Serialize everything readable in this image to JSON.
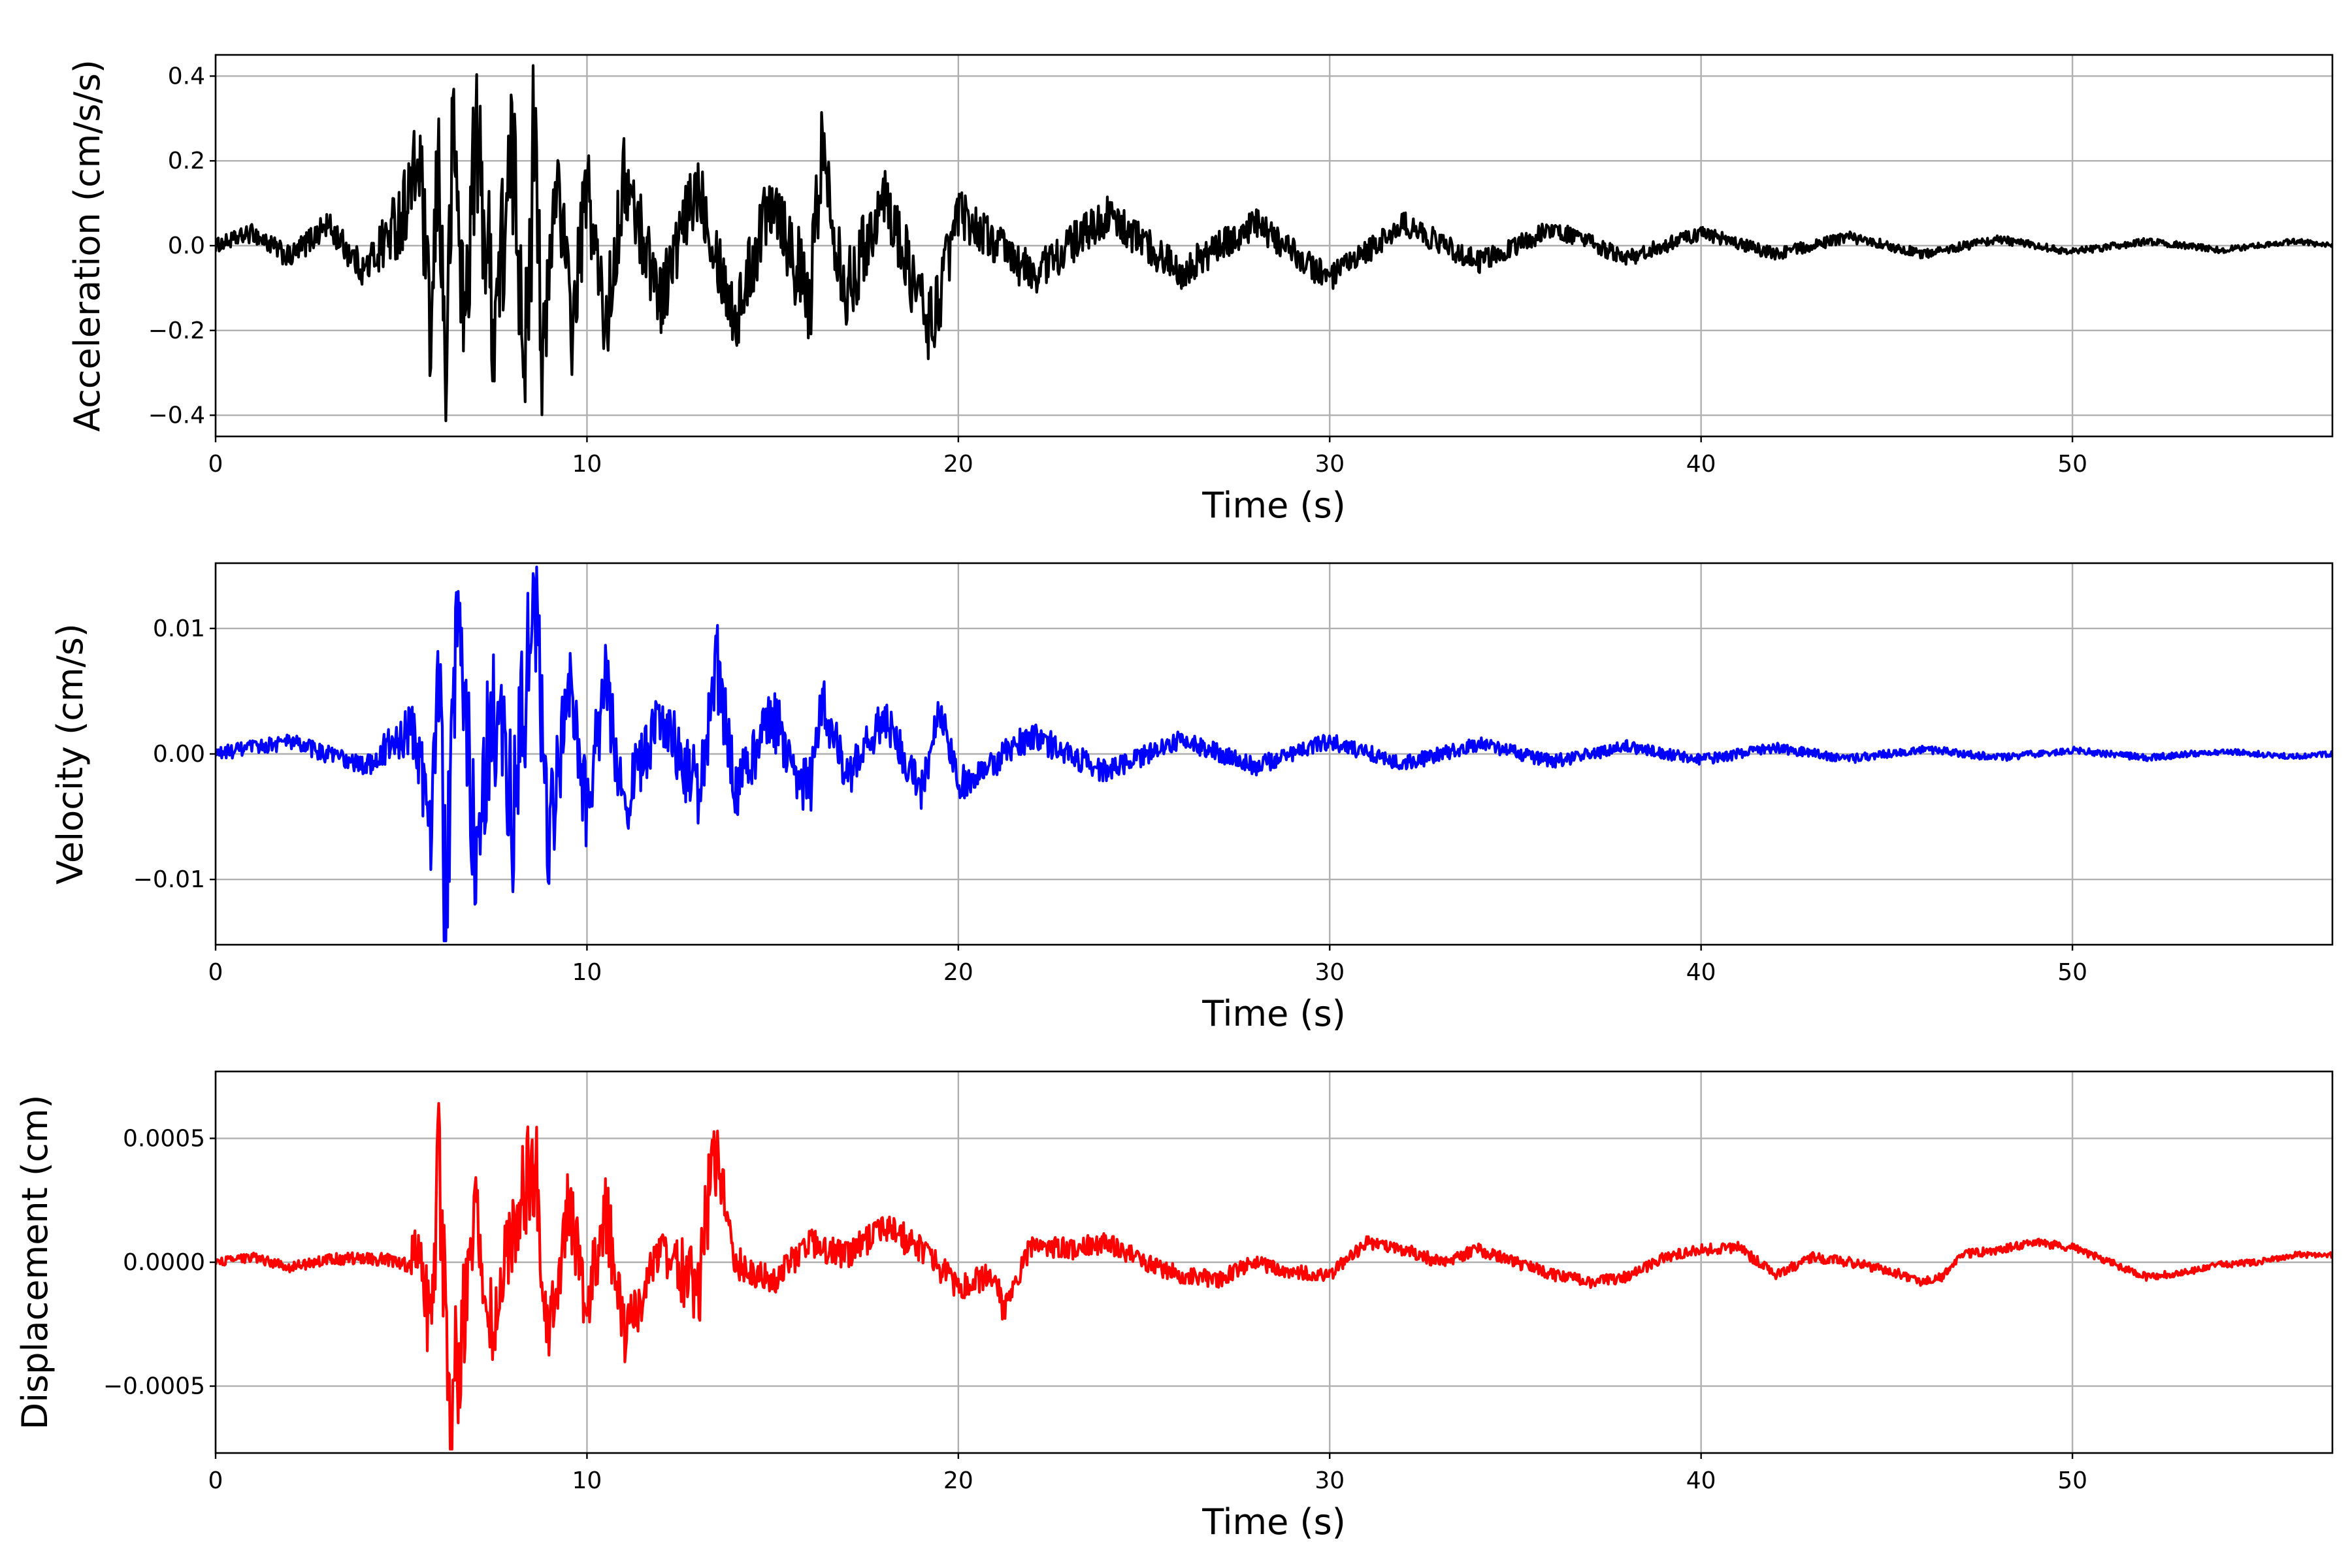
{
  "chart_data": [
    {
      "type": "line",
      "xlabel": "Time (s)",
      "ylabel": "Acceleration (cm/s/s)",
      "xlim": [
        0,
        57
      ],
      "ylim": [
        -0.45,
        0.45
      ],
      "xticks": [
        0,
        10,
        20,
        30,
        40,
        50
      ],
      "xtick_labels": [
        "0",
        "10",
        "20",
        "30",
        "40",
        "50"
      ],
      "yticks": [
        -0.4,
        -0.2,
        0.0,
        0.2,
        0.4
      ],
      "ytick_labels": [
        "−0.4",
        "−0.2",
        "0.0",
        "0.2",
        "0.4"
      ],
      "grid": true,
      "color": "#000000",
      "envelope": [
        [
          0,
          0.03
        ],
        [
          2,
          0.05
        ],
        [
          4,
          0.07
        ],
        [
          5.5,
          0.22
        ],
        [
          6.2,
          0.3
        ],
        [
          8.6,
          0.4
        ],
        [
          9,
          0.2
        ],
        [
          10,
          0.2
        ],
        [
          12,
          0.16
        ],
        [
          14,
          0.15
        ],
        [
          16.3,
          0.22
        ],
        [
          18,
          0.12
        ],
        [
          19.3,
          0.19
        ],
        [
          20,
          0.1
        ],
        [
          25,
          0.08
        ],
        [
          30,
          0.06
        ],
        [
          35,
          0.045
        ],
        [
          40,
          0.03
        ],
        [
          45,
          0.022
        ],
        [
          50,
          0.016
        ],
        [
          57,
          0.012
        ]
      ],
      "series": [
        {
          "x": [
            0,
            1,
            2,
            3,
            4,
            5,
            5.5,
            5.8,
            6.0,
            6.2,
            6.4,
            6.7,
            7.0,
            7.5,
            8.0,
            8.4,
            8.6,
            8.8,
            9.2,
            9.6,
            10.0,
            10.5,
            11,
            12,
            13,
            14,
            15,
            16,
            16.3,
            17,
            18,
            19,
            19.3,
            20,
            22,
            24,
            26,
            28,
            30,
            32,
            34,
            36,
            38,
            40,
            42,
            44,
            46,
            48,
            50,
            52,
            54,
            56,
            57
          ],
          "y": [
            0.0,
            0.03,
            -0.03,
            0.05,
            -0.06,
            0.07,
            0.2,
            -0.25,
            0.23,
            -0.33,
            0.3,
            -0.2,
            0.27,
            -0.17,
            0.2,
            -0.28,
            0.41,
            -0.32,
            0.19,
            -0.21,
            0.15,
            -0.2,
            0.16,
            -0.12,
            0.15,
            -0.18,
            0.14,
            -0.15,
            0.23,
            -0.11,
            0.12,
            -0.14,
            -0.19,
            0.08,
            -0.07,
            0.07,
            -0.06,
            0.05,
            -0.08,
            0.05,
            -0.04,
            0.04,
            -0.03,
            0.03,
            -0.02,
            0.02,
            -0.02,
            0.015,
            -0.015,
            0.01,
            -0.01,
            0.01,
            0.0
          ]
        }
      ]
    },
    {
      "type": "line",
      "xlabel": "Time (s)",
      "ylabel": "Velocity (cm/s)",
      "xlim": [
        0,
        57
      ],
      "ylim": [
        -0.0152,
        0.0152
      ],
      "xticks": [
        0,
        10,
        20,
        30,
        40,
        50
      ],
      "xtick_labels": [
        "0",
        "10",
        "20",
        "30",
        "40",
        "50"
      ],
      "yticks": [
        -0.01,
        0.0,
        0.01
      ],
      "ytick_labels": [
        "−0.01",
        "0.00",
        "0.01"
      ],
      "grid": true,
      "color": "#0000ff",
      "envelope": [
        [
          0,
          0.001
        ],
        [
          4,
          0.0015
        ],
        [
          5.3,
          0.004
        ],
        [
          5.8,
          0.008
        ],
        [
          6.2,
          0.014
        ],
        [
          6.5,
          0.01
        ],
        [
          8.6,
          0.012
        ],
        [
          9.5,
          0.006
        ],
        [
          10.3,
          0.006
        ],
        [
          12,
          0.004
        ],
        [
          13.5,
          0.007
        ],
        [
          14,
          0.004
        ],
        [
          16,
          0.005
        ],
        [
          17,
          0.003
        ],
        [
          20,
          0.0025
        ],
        [
          25,
          0.0015
        ],
        [
          30,
          0.0012
        ],
        [
          35,
          0.001
        ],
        [
          40,
          0.0008
        ],
        [
          45,
          0.0006
        ],
        [
          50,
          0.0005
        ],
        [
          57,
          0.0004
        ]
      ],
      "series": [
        {
          "x": [
            0,
            2,
            4,
            5.3,
            5.8,
            6.0,
            6.2,
            6.5,
            7.0,
            7.5,
            8.0,
            8.6,
            9.0,
            9.5,
            10.0,
            10.5,
            11,
            12,
            13,
            13.5,
            14,
            15,
            16,
            16.3,
            17,
            18,
            19,
            19.5,
            20,
            22,
            24,
            26,
            28,
            30,
            32,
            34,
            36,
            38,
            40,
            42,
            44,
            46,
            48,
            50,
            52,
            54,
            56,
            57
          ],
          "y": [
            0.0,
            0.001,
            -0.001,
            0.002,
            -0.005,
            0.008,
            -0.0139,
            0.0102,
            -0.007,
            0.004,
            -0.005,
            0.0122,
            -0.0075,
            0.0065,
            -0.005,
            0.006,
            -0.004,
            0.003,
            -0.003,
            0.0068,
            -0.003,
            0.003,
            -0.003,
            0.0047,
            -0.002,
            0.003,
            -0.003,
            0.0035,
            -0.0025,
            0.0015,
            -0.0015,
            0.0012,
            -0.001,
            0.001,
            -0.0008,
            0.0008,
            -0.0006,
            0.0006,
            -0.0005,
            0.0005,
            -0.0004,
            0.0004,
            -0.0003,
            0.0003,
            -0.0003,
            0.0002,
            -0.0002,
            0.0
          ]
        }
      ]
    },
    {
      "type": "line",
      "xlabel": "Time (s)",
      "ylabel": "Displacement (cm)",
      "xlim": [
        0,
        57
      ],
      "ylim": [
        -0.00077,
        0.00077
      ],
      "xticks": [
        0,
        10,
        20,
        30,
        40,
        50
      ],
      "xtick_labels": [
        "0",
        "10",
        "20",
        "30",
        "40",
        "50"
      ],
      "yticks": [
        -0.0005,
        0.0,
        0.0005
      ],
      "ytick_labels": [
        "−0.0005",
        "0.0000",
        "0.0005"
      ],
      "grid": true,
      "color": "#ff0000",
      "envelope": [
        [
          0,
          3e-05
        ],
        [
          5,
          5e-05
        ],
        [
          5.6,
          0.00025
        ],
        [
          6.0,
          0.00047
        ],
        [
          6.3,
          0.0007
        ],
        [
          7.0,
          0.0003
        ],
        [
          8.6,
          0.00042
        ],
        [
          9.5,
          0.00025
        ],
        [
          10.5,
          0.0003
        ],
        [
          12,
          0.00013
        ],
        [
          13.4,
          0.00042
        ],
        [
          14,
          0.00012
        ],
        [
          16,
          0.0001
        ],
        [
          18,
          0.00012
        ],
        [
          20,
          0.0001
        ],
        [
          25,
          7e-05
        ],
        [
          30,
          5e-05
        ],
        [
          40,
          4e-05
        ],
        [
          50,
          3e-05
        ],
        [
          57,
          2e-05
        ]
      ],
      "series": [
        {
          "x": [
            0,
            1,
            2,
            3,
            4,
            5,
            5.5,
            5.8,
            6.0,
            6.3,
            6.5,
            7.0,
            7.5,
            8.0,
            8.6,
            9.0,
            9.5,
            10.0,
            10.5,
            11,
            12,
            13,
            13.4,
            14,
            15,
            16,
            17,
            18,
            19,
            20,
            21,
            21.2,
            22,
            23,
            24,
            25,
            26,
            27,
            28,
            29,
            30,
            31,
            32,
            33,
            34,
            35,
            36,
            37,
            38,
            39,
            40,
            41,
            42,
            43,
            44,
            45,
            46,
            46.5,
            47,
            48,
            49,
            50,
            51,
            52,
            53,
            54,
            55,
            56,
            57
          ],
          "y": [
            0.0,
            2e-05,
            -2e-05,
            1e-05,
            2e-05,
            0.0,
            5e-05,
            -0.00033,
            0.00046,
            -0.00069,
            -0.0004,
            0.0002,
            -0.00032,
            0.00015,
            0.00041,
            -0.00033,
            0.00025,
            -0.0002,
            0.00022,
            -0.0003,
            5e-05,
            -0.0001,
            0.00042,
            0.0,
            -8e-05,
            8e-05,
            2e-05,
            0.00015,
            5e-05,
            -0.0001,
            -5e-05,
            -0.0002,
            8e-05,
            5e-05,
            8e-05,
            0.0,
            -5e-05,
            -7e-05,
            0.0,
            -4e-05,
            -5e-05,
            8e-05,
            5e-05,
            0.0,
            5e-05,
            0.0,
            -5e-05,
            -8e-05,
            -6e-05,
            2e-05,
            5e-05,
            6e-05,
            -5e-05,
            2e-05,
            0.0,
            -3e-05,
            -8e-05,
            -6e-05,
            3e-05,
            5e-05,
            8e-05,
            6e-05,
            0.0,
            -6e-05,
            -4e-05,
            -1e-05,
            0.0,
            3e-05,
            3e-05
          ]
        }
      ]
    }
  ]
}
